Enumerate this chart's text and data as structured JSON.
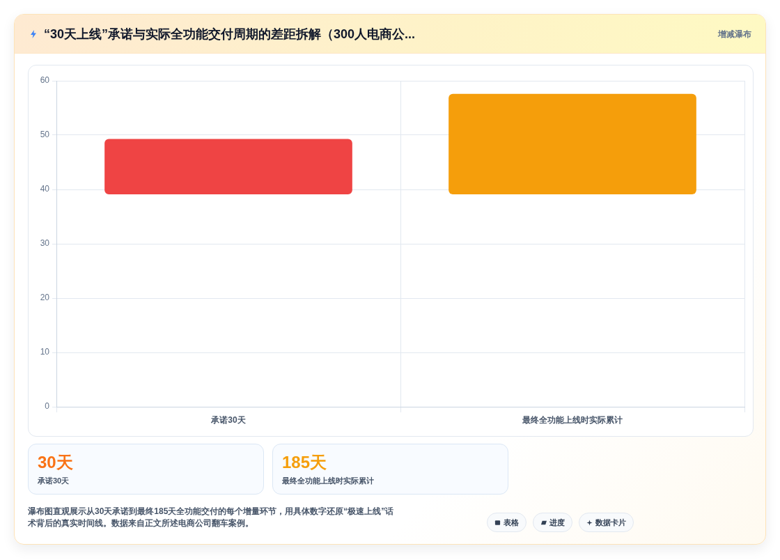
{
  "chart_data": {
    "type": "bar",
    "title": "“30天上线”承诺与实际全功能交付周期的差距拆解（300人电商公...",
    "categories": [
      "承诺30天",
      "最终全功能上线时实际累计"
    ],
    "values": [
      10.2,
      18.5
    ],
    "base": [
      39.1,
      39.1
    ],
    "colors": [
      "#ef4444",
      "#f59e0b"
    ],
    "ylim": [
      0,
      60
    ],
    "yticks": [
      0,
      10,
      20,
      30,
      40,
      50,
      60
    ],
    "grid": true,
    "annotations": [
      "增减瀑布",
      "30天",
      "承诺30天",
      "185天",
      "最终全功能上线时实际累计",
      "瀑布图直观展示从30天承诺到最终185天全功能交付的每个增量环节，用具体数字还原“极速上线”话术背后的真实时间线。数据来自正文所述电商公司翻车案例。",
      "表格",
      "进度",
      "数据卡片"
    ]
  }
}
